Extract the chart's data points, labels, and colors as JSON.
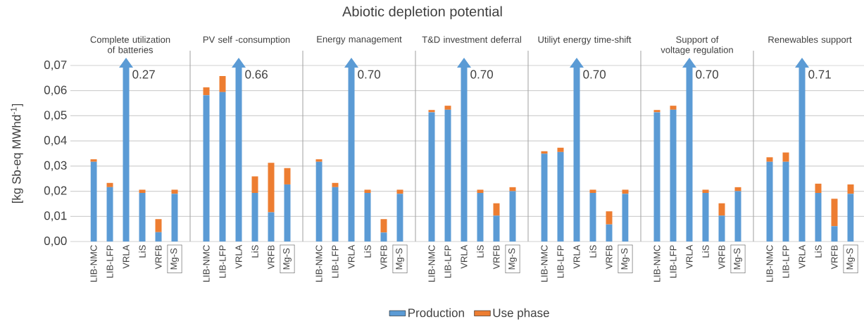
{
  "chart_data": [
    {
      "type": "other",
      "title": "Abiotic depletion potential"
    },
    {
      "type": "bar",
      "stacked": true,
      "subtitle": "Complete utilization of batteries",
      "ylabel": "[kg Sb-eq MWhd$^{-1}$]",
      "categories": [
        "LIB-NMC",
        "LIB-LFP",
        "VRLA",
        "LiS",
        "VRFB",
        "Mg-S"
      ],
      "series": [
        {
          "name": "Production",
          "color": "#5b9bd5",
          "values": [
            0.0317,
            0.0216,
            null,
            0.0193,
            0.0037,
            0.019
          ]
        },
        {
          "name": "Use phase",
          "color": "#ed7d31",
          "values": [
            0.001,
            0.0017,
            null,
            0.0013,
            0.0052,
            0.0016
          ]
        }
      ],
      "annotations": [
        "0.27"
      ],
      "ylim": [
        0,
        0.07
      ],
      "yticks": [
        {
          "value": 0,
          "label": "0,00"
        },
        {
          "value": 0.01,
          "label": "0,01"
        },
        {
          "value": 0.02,
          "label": "0,02"
        },
        {
          "value": 0.03,
          "label": "0,03"
        },
        {
          "value": 0.04,
          "label": "0,04"
        },
        {
          "value": 0.05,
          "label": "0,05"
        },
        {
          "value": 0.06,
          "label": "0,06"
        },
        {
          "value": 0.07,
          "label": "0,07"
        }
      ],
      "grid": "y",
      "legend": "bottom"
    },
    {
      "type": "bar",
      "stacked": true,
      "subtitle": "PV self -consumption",
      "categories": [
        "LIB-NMC",
        "LIB-LFP",
        "VRLA",
        "LiS",
        "VRFB",
        "Mg-S"
      ],
      "series": [
        {
          "color": "#5b9bd5",
          "values": [
            0.0582,
            0.0594,
            null,
            0.0193,
            0.0116,
            0.0227
          ]
        },
        {
          "color": "#ed7d31",
          "values": [
            0.0031,
            0.0064,
            null,
            0.0066,
            0.0197,
            0.0065
          ]
        }
      ],
      "annotations": [
        "0.66"
      ],
      "ylim": [
        0,
        0.07
      ],
      "yticks": [
        {
          "value": 0,
          "label": null
        },
        {
          "value": 0.01,
          "label": null
        },
        {
          "value": 0.02,
          "label": null
        },
        {
          "value": 0.03,
          "label": null
        },
        {
          "value": 0.04,
          "label": null
        },
        {
          "value": 0.05,
          "label": null
        },
        {
          "value": 0.06,
          "label": null
        },
        {
          "value": 0.07,
          "label": null
        }
      ],
      "grid": "y",
      "tick_labels": "x"
    },
    {
      "type": "bar",
      "stacked": true,
      "subtitle": "Energy management",
      "categories": [
        "LIB-NMC",
        "LIB-LFP",
        "VRLA",
        "LiS",
        "VRFB",
        "Mg-S"
      ],
      "series": [
        {
          "color": "#5b9bd5",
          "values": [
            0.0317,
            0.0216,
            null,
            0.0193,
            0.0036,
            0.019
          ]
        },
        {
          "color": "#ed7d31",
          "values": [
            0.001,
            0.0017,
            null,
            0.0013,
            0.0053,
            0.0016
          ]
        }
      ],
      "annotations": [
        "0.70"
      ],
      "ylim": [
        0,
        0.07
      ],
      "yticks": [
        {
          "value": 0,
          "label": null
        },
        {
          "value": 0.01,
          "label": null
        },
        {
          "value": 0.02,
          "label": null
        },
        {
          "value": 0.03,
          "label": null
        },
        {
          "value": 0.04,
          "label": null
        },
        {
          "value": 0.05,
          "label": null
        },
        {
          "value": 0.06,
          "label": null
        },
        {
          "value": 0.07,
          "label": null
        }
      ],
      "grid": "y",
      "tick_labels": "x"
    },
    {
      "type": "bar",
      "stacked": true,
      "subtitle": "T&D investment deferral",
      "categories": [
        "LIB-NMC",
        "LIB-LFP",
        "VRLA",
        "LiS",
        "VRFB",
        "Mg-S"
      ],
      "series": [
        {
          "color": "#5b9bd5",
          "values": [
            0.0514,
            0.0524,
            null,
            0.0193,
            0.0103,
            0.02
          ]
        },
        {
          "color": "#ed7d31",
          "values": [
            0.0009,
            0.0016,
            null,
            0.0013,
            0.0049,
            0.0016
          ]
        }
      ],
      "annotations": [
        "0.70"
      ],
      "ylim": [
        0,
        0.07
      ],
      "yticks": [
        {
          "value": 0,
          "label": null
        },
        {
          "value": 0.01,
          "label": null
        },
        {
          "value": 0.02,
          "label": null
        },
        {
          "value": 0.03,
          "label": null
        },
        {
          "value": 0.04,
          "label": null
        },
        {
          "value": 0.05,
          "label": null
        },
        {
          "value": 0.06,
          "label": null
        },
        {
          "value": 0.07,
          "label": null
        }
      ],
      "grid": "y",
      "tick_labels": "x"
    },
    {
      "type": "bar",
      "stacked": true,
      "subtitle": "Utiliyt energy time-shift",
      "categories": [
        "LIB-NMC",
        "LIB-LFP",
        "VRLA",
        "LiS",
        "VRFB",
        "Mg-S"
      ],
      "series": [
        {
          "color": "#5b9bd5",
          "values": [
            0.0349,
            0.0356,
            null,
            0.0193,
            0.0068,
            0.019
          ]
        },
        {
          "color": "#ed7d31",
          "values": [
            0.001,
            0.0017,
            null,
            0.0013,
            0.0052,
            0.0016
          ]
        }
      ],
      "annotations": [
        "0.70"
      ],
      "ylim": [
        0,
        0.07
      ],
      "yticks": [
        {
          "value": 0,
          "label": null
        },
        {
          "value": 0.01,
          "label": null
        },
        {
          "value": 0.02,
          "label": null
        },
        {
          "value": 0.03,
          "label": null
        },
        {
          "value": 0.04,
          "label": null
        },
        {
          "value": 0.05,
          "label": null
        },
        {
          "value": 0.06,
          "label": null
        },
        {
          "value": 0.07,
          "label": null
        }
      ],
      "grid": "y",
      "tick_labels": "x"
    },
    {
      "type": "bar",
      "stacked": true,
      "subtitle": "Support of voltage regulation",
      "categories": [
        "LIB-NMC",
        "LIB-LFP",
        "VRLA",
        "LiS",
        "VRFB",
        "Mg-S"
      ],
      "series": [
        {
          "color": "#5b9bd5",
          "values": [
            0.0514,
            0.0524,
            null,
            0.0193,
            0.0103,
            0.02
          ]
        },
        {
          "color": "#ed7d31",
          "values": [
            0.0009,
            0.0016,
            null,
            0.0013,
            0.0049,
            0.0016
          ]
        }
      ],
      "annotations": [
        "0.70"
      ],
      "ylim": [
        0,
        0.07
      ],
      "yticks": [
        {
          "value": 0,
          "label": null
        },
        {
          "value": 0.01,
          "label": null
        },
        {
          "value": 0.02,
          "label": null
        },
        {
          "value": 0.03,
          "label": null
        },
        {
          "value": 0.04,
          "label": null
        },
        {
          "value": 0.05,
          "label": null
        },
        {
          "value": 0.06,
          "label": null
        },
        {
          "value": 0.07,
          "label": null
        }
      ],
      "grid": "y",
      "tick_labels": "x"
    },
    {
      "type": "bar",
      "stacked": true,
      "subtitle": "Renewables support",
      "categories": [
        "LIB-NMC",
        "LIB-LFP",
        "VRLA",
        "LiS",
        "VRFB",
        "Mg-S"
      ],
      "series": [
        {
          "color": "#5b9bd5",
          "values": [
            0.0317,
            0.0317,
            null,
            0.0193,
            0.0061,
            0.019
          ]
        },
        {
          "color": "#ed7d31",
          "values": [
            0.0018,
            0.0037,
            null,
            0.0037,
            0.0109,
            0.0037
          ]
        }
      ],
      "annotations": [
        "0.71"
      ],
      "ylim": [
        0,
        0.07
      ],
      "yticks": [
        {
          "value": 0,
          "label": null
        },
        {
          "value": 0.01,
          "label": null
        },
        {
          "value": 0.02,
          "label": null
        },
        {
          "value": 0.03,
          "label": null
        },
        {
          "value": 0.04,
          "label": null
        },
        {
          "value": 0.05,
          "label": null
        },
        {
          "value": 0.06,
          "label": null
        },
        {
          "value": 0.07,
          "label": null
        }
      ],
      "grid": "y",
      "tick_labels": "x"
    }
  ]
}
